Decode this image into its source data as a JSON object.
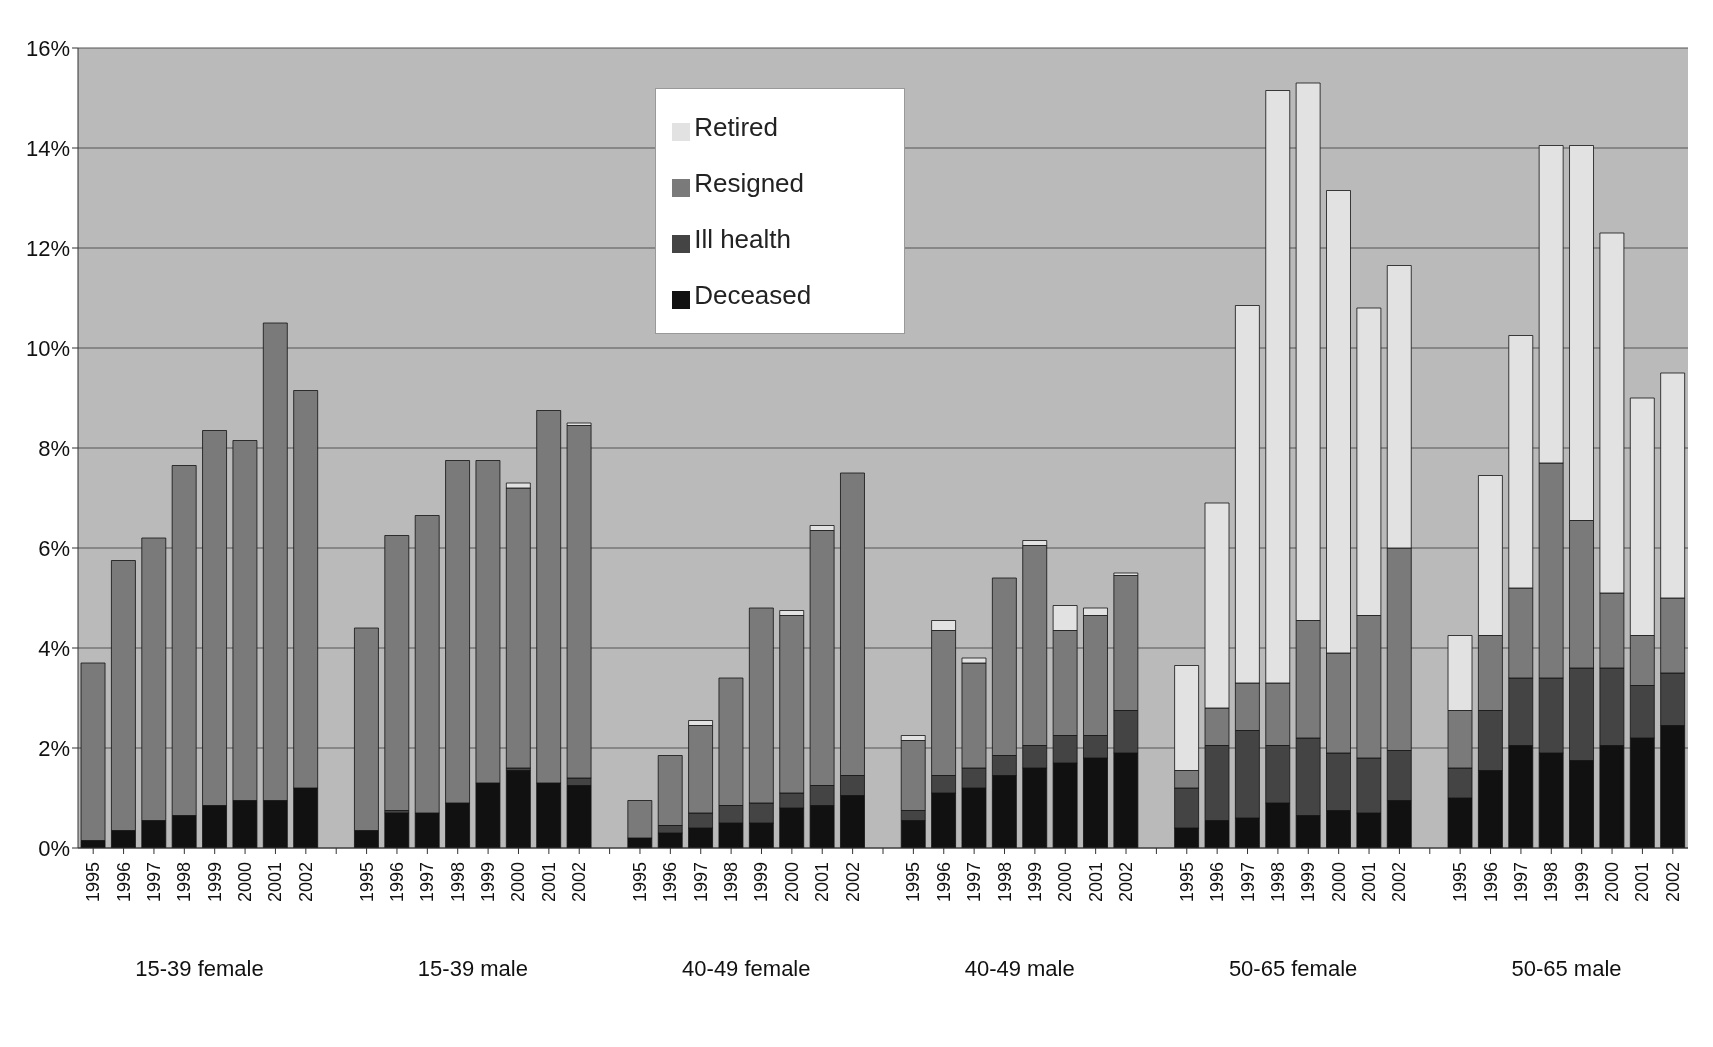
{
  "chart_data": {
    "type": "bar",
    "stacked": true,
    "categories": [
      "1995",
      "1996",
      "1997",
      "1998",
      "1999",
      "2000",
      "2001",
      "2002",
      null,
      "1995",
      "1996",
      "1997",
      "1998",
      "1999",
      "2000",
      "2001",
      "2002",
      null,
      "1995",
      "1996",
      "1997",
      "1998",
      "1999",
      "2000",
      "2001",
      "2002",
      null,
      "1995",
      "1996",
      "1997",
      "1998",
      "1999",
      "2000",
      "2001",
      "2002",
      null,
      "1995",
      "1996",
      "1997",
      "1998",
      "1999",
      "2000",
      "2001",
      "2002",
      null,
      "1995",
      "1996",
      "1997",
      "1998",
      "1999",
      "2000",
      "2001",
      "2002"
    ],
    "annotations": [
      "15-39 female",
      "15-39 male",
      "40-49 female",
      "40-49 male",
      "50-65 female",
      "50-65 male"
    ],
    "ylim": [
      0,
      16
    ],
    "yticks": [
      {
        "value": 0,
        "label": "0%"
      },
      {
        "value": 2,
        "label": "2%"
      },
      {
        "value": 4,
        "label": "4%"
      },
      {
        "value": 6,
        "label": "6%"
      },
      {
        "value": 8,
        "label": "8%"
      },
      {
        "value": 10,
        "label": "10%"
      },
      {
        "value": 12,
        "label": "12%"
      },
      {
        "value": 14,
        "label": "14%"
      },
      {
        "value": 16,
        "label": "16%"
      }
    ],
    "grid": "y",
    "legend": "top",
    "series": [
      {
        "name": "Deceased",
        "color": "#111111",
        "values": [
          0.15,
          0.35,
          0.55,
          0.65,
          0.85,
          0.95,
          0.95,
          1.2,
          null,
          0.35,
          0.7,
          0.7,
          0.9,
          1.3,
          1.55,
          1.3,
          1.25,
          null,
          0.2,
          0.3,
          0.4,
          0.5,
          0.5,
          0.8,
          0.85,
          1.05,
          null,
          0.55,
          1.1,
          1.2,
          1.45,
          1.6,
          1.7,
          1.8,
          1.9,
          null,
          0.4,
          0.55,
          0.6,
          0.9,
          0.65,
          0.75,
          0.7,
          0.95,
          null,
          1.0,
          1.55,
          2.05,
          1.9,
          1.75,
          2.05,
          2.2,
          2.45
        ]
      },
      {
        "name": "Ill health",
        "color": "#444444",
        "values": [
          0,
          0,
          0,
          0,
          0,
          0,
          0,
          0,
          null,
          0,
          0.05,
          0,
          0,
          0,
          0.05,
          0,
          0.15,
          null,
          0,
          0.15,
          0.3,
          0.35,
          0.4,
          0.3,
          0.4,
          0.4,
          null,
          0.2,
          0.35,
          0.4,
          0.4,
          0.45,
          0.55,
          0.45,
          0.85,
          null,
          0.8,
          1.5,
          1.75,
          1.15,
          1.55,
          1.15,
          1.1,
          1.0,
          null,
          0.6,
          1.2,
          1.35,
          1.5,
          1.85,
          1.55,
          1.05,
          1.05
        ]
      },
      {
        "name": "Resigned",
        "color": "#7a7a7a",
        "values": [
          3.55,
          5.4,
          5.65,
          7.0,
          7.5,
          7.2,
          9.55,
          7.95,
          null,
          4.05,
          5.5,
          5.95,
          6.85,
          6.45,
          5.6,
          7.45,
          7.05,
          null,
          0.75,
          1.4,
          1.75,
          2.55,
          3.9,
          3.55,
          5.1,
          6.05,
          null,
          1.4,
          2.9,
          2.1,
          3.55,
          4.0,
          2.1,
          2.4,
          2.7,
          null,
          0.35,
          0.75,
          0.95,
          1.25,
          2.35,
          2.0,
          2.85,
          4.05,
          null,
          1.15,
          1.5,
          1.8,
          4.3,
          2.95,
          1.5,
          1.0,
          1.5
        ]
      },
      {
        "name": "Retired",
        "color": "#e2e2e2",
        "values": [
          0,
          0,
          0,
          0,
          0,
          0,
          0,
          0,
          null,
          0,
          0,
          0,
          0,
          0,
          0.1,
          0,
          0.05,
          null,
          0,
          0,
          0.1,
          0,
          0,
          0.1,
          0.1,
          0,
          null,
          0.1,
          0.2,
          0.1,
          0,
          0.1,
          0.5,
          0.15,
          0.05,
          null,
          2.1,
          4.1,
          7.55,
          11.85,
          10.75,
          9.25,
          6.15,
          5.65,
          null,
          1.5,
          3.2,
          5.05,
          6.35,
          7.5,
          7.2,
          4.75,
          4.5
        ]
      }
    ]
  }
}
